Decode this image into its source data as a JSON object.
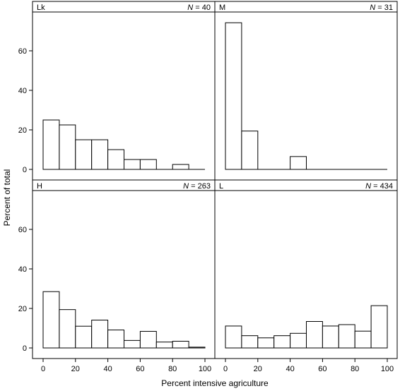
{
  "ylabel": "Percent of total",
  "xlabel": "Percent intensive agriculture",
  "chart_data": {
    "type": "bar",
    "layout": "2x2 trellis histogram",
    "xlim": [
      0,
      100
    ],
    "ylim": [
      0,
      80
    ],
    "xticks": [
      0,
      20,
      40,
      60,
      80,
      100
    ],
    "yticks": [
      0,
      20,
      40,
      60
    ],
    "bin_edges": [
      0,
      10,
      20,
      30,
      40,
      50,
      60,
      70,
      80,
      90,
      100
    ],
    "grid": false,
    "xlabel": "Percent intensive agriculture",
    "ylabel": "Percent of total",
    "panels": [
      {
        "name": "Lk",
        "n_label": "= 40",
        "values": [
          25,
          22.5,
          15,
          15,
          10,
          5,
          5,
          0,
          2.5,
          0
        ]
      },
      {
        "name": "M",
        "n_label": "= 31",
        "values": [
          74.2,
          19.4,
          0,
          0,
          6.5,
          0,
          0,
          0,
          0,
          0
        ]
      },
      {
        "name": "H",
        "n_label": "= 263",
        "values": [
          28.5,
          19.4,
          11,
          14.1,
          9.1,
          3.8,
          8.4,
          3,
          3.4,
          0.4
        ]
      },
      {
        "name": "L",
        "n_label": "= 434",
        "values": [
          11.1,
          6.2,
          5.1,
          6.2,
          7.4,
          13.4,
          11.1,
          11.8,
          8.5,
          21.4
        ]
      }
    ]
  }
}
